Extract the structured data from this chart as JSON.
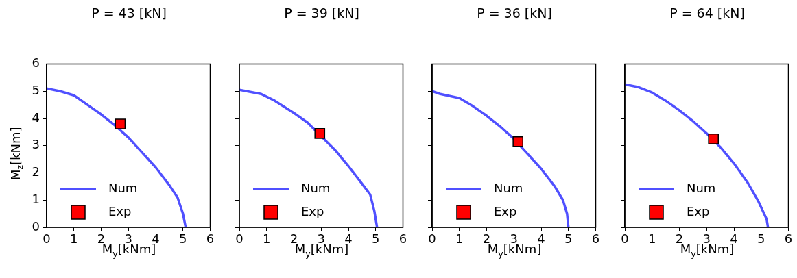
{
  "chart_data": [
    {
      "type": "line",
      "title": "P = 43 [kN]",
      "xlabel": "M$_{y}$[kNm]",
      "ylabel": "M$_{z}$[kNm]",
      "xlim": [
        0,
        6
      ],
      "ylim": [
        0,
        6
      ],
      "xticks": [
        0,
        1,
        2,
        3,
        4,
        5,
        6
      ],
      "yticks": [
        0,
        1,
        2,
        3,
        4,
        5,
        6
      ],
      "legend": "bottom left",
      "grid": false,
      "series": [
        {
          "name": "Num",
          "type": "line",
          "color": "#5050ff",
          "marker": "none",
          "x": [
            0,
            0.5,
            1,
            1.5,
            2,
            2.5,
            3,
            3.5,
            4,
            4.5,
            4.8,
            5,
            5.1
          ],
          "values": [
            5.1,
            5.0,
            4.85,
            4.5,
            4.15,
            3.75,
            3.3,
            2.75,
            2.2,
            1.55,
            1.1,
            0.5,
            0
          ]
        },
        {
          "name": "Exp",
          "type": "scatter",
          "color": "#ff0000",
          "marker": "square",
          "x": [
            2.7
          ],
          "values": [
            3.8
          ]
        }
      ]
    },
    {
      "type": "line",
      "title": "P = 39 [kN]",
      "xlabel": "M$_{y}$[kNm]",
      "xlim": [
        0,
        6
      ],
      "ylim": [
        0,
        6
      ],
      "xticks": [
        0,
        1,
        2,
        3,
        4,
        5,
        6
      ],
      "yticks": [
        0,
        1,
        2,
        3,
        4,
        5,
        6
      ],
      "tick_labels": "x",
      "legend": "bottom left",
      "grid": false,
      "series": [
        {
          "name": "Num",
          "type": "line",
          "color": "#5050ff",
          "marker": "none",
          "x": [
            0,
            0.8,
            1.3,
            2,
            2.5,
            3.5,
            4,
            4.5,
            4.8,
            4.95,
            5.05
          ],
          "values": [
            5.05,
            4.9,
            4.65,
            4.2,
            3.85,
            2.85,
            2.25,
            1.6,
            1.2,
            0.6,
            0
          ]
        },
        {
          "name": "Exp",
          "type": "scatter",
          "color": "#ff0000",
          "marker": "square",
          "x": [
            2.95
          ],
          "values": [
            3.45
          ]
        }
      ]
    },
    {
      "type": "line",
      "title": "P = 36 [kN]",
      "xlabel": "M$_{y}$[kNm]",
      "xlim": [
        0,
        6
      ],
      "ylim": [
        0,
        6
      ],
      "xticks": [
        0,
        1,
        2,
        3,
        4,
        5,
        6
      ],
      "yticks": [
        0,
        1,
        2,
        3,
        4,
        5,
        6
      ],
      "tick_labels": "x",
      "legend": "bottom left",
      "grid": false,
      "series": [
        {
          "name": "Num",
          "type": "line",
          "color": "#5050ff",
          "marker": "none",
          "x": [
            0,
            0.3,
            1,
            1.5,
            2,
            2.5,
            3,
            3.5,
            4,
            4.5,
            4.8,
            4.95,
            5
          ],
          "values": [
            5.0,
            4.9,
            4.75,
            4.45,
            4.1,
            3.7,
            3.25,
            2.7,
            2.15,
            1.5,
            1.0,
            0.5,
            0
          ]
        },
        {
          "name": "Exp",
          "type": "scatter",
          "color": "#ff0000",
          "marker": "square",
          "x": [
            3.15
          ],
          "values": [
            3.15
          ]
        }
      ]
    },
    {
      "type": "line",
      "title": "P = 64 [kN]",
      "xlabel": "M$_{y}$[kNm]",
      "xlim": [
        0,
        6
      ],
      "ylim": [
        0,
        6
      ],
      "xticks": [
        0,
        1,
        2,
        3,
        4,
        5,
        6
      ],
      "yticks": [
        0,
        1,
        2,
        3,
        4,
        5,
        6
      ],
      "tick_labels": "x",
      "legend": "bottom left",
      "grid": false,
      "series": [
        {
          "name": "Num",
          "type": "line",
          "color": "#5050ff",
          "marker": "none",
          "x": [
            0,
            0.5,
            1,
            1.5,
            2,
            2.5,
            3,
            3.5,
            4,
            4.5,
            4.9,
            5.2,
            5.25
          ],
          "values": [
            5.25,
            5.15,
            4.95,
            4.65,
            4.3,
            3.9,
            3.45,
            2.95,
            2.35,
            1.65,
            0.95,
            0.3,
            0
          ]
        },
        {
          "name": "Exp",
          "type": "scatter",
          "color": "#ff0000",
          "marker": "square",
          "x": [
            3.25
          ],
          "values": [
            3.25
          ]
        }
      ]
    }
  ]
}
